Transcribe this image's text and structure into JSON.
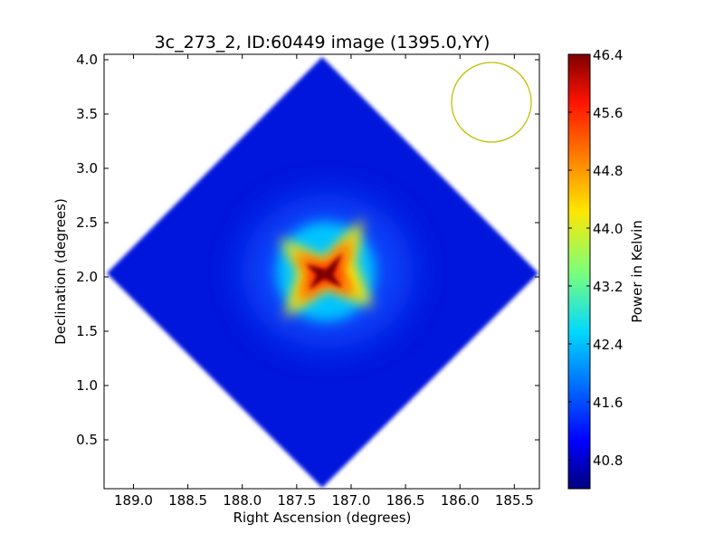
{
  "chart_data": {
    "type": "heatmap",
    "title": "3c_273_2, ID:60449 image (1395.0,YY)",
    "xlabel": "Right Ascension (degrees)",
    "ylabel": "Declination (degrees)",
    "xlim": [
      189.27,
      185.27
    ],
    "ylim": [
      0.05,
      4.05
    ],
    "x_ticks": [
      "189.0",
      "188.5",
      "188.0",
      "187.5",
      "187.0",
      "186.5",
      "186.0",
      "185.5"
    ],
    "x_tick_values": [
      189.0,
      188.5,
      188.0,
      187.5,
      187.0,
      186.5,
      186.0,
      185.5
    ],
    "y_ticks": [
      "0.5",
      "1.0",
      "1.5",
      "2.0",
      "2.5",
      "3.0",
      "3.5",
      "4.0"
    ],
    "y_tick_values": [
      0.5,
      1.0,
      1.5,
      2.0,
      2.5,
      3.0,
      3.5,
      4.0
    ],
    "colormap": "jet",
    "colorbar": {
      "label": "Power in Kelvin",
      "min": 40.4,
      "max": 46.4,
      "ticks": [
        "40.8",
        "41.6",
        "42.4",
        "43.2",
        "44.0",
        "44.8",
        "45.6",
        "46.4"
      ],
      "tick_values": [
        40.8,
        41.6,
        42.4,
        43.2,
        44.0,
        44.8,
        45.6,
        46.4
      ]
    },
    "image_region": {
      "shape": "diamond",
      "center_ra": 187.27,
      "center_dec": 2.05,
      "half_width_deg": 2.0,
      "background_level": 40.9
    },
    "peak": {
      "ra": 187.27,
      "dec": 2.05,
      "value": 46.3
    },
    "beam": {
      "ra": 185.73,
      "dec": 3.62,
      "radius_deg": 0.37,
      "color": "#bfbf00"
    }
  }
}
